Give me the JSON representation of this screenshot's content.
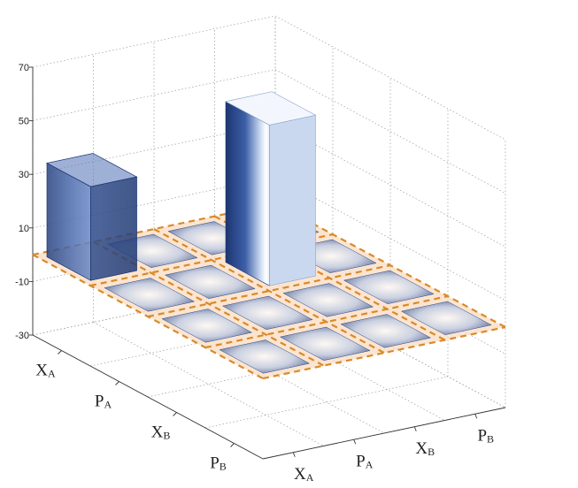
{
  "chart_data": {
    "type": "bar3d",
    "title": "",
    "xlabel": "",
    "ylabel": "",
    "zlim": [
      -30,
      70
    ],
    "z_ticks": [
      "70",
      "50",
      "30",
      "10",
      "-10",
      "-30"
    ],
    "grid": true,
    "row_categories": [
      {
        "main": "X",
        "sub": "A"
      },
      {
        "main": "P",
        "sub": "A"
      },
      {
        "main": "X",
        "sub": "B"
      },
      {
        "main": "P",
        "sub": "B"
      }
    ],
    "col_categories": [
      {
        "main": "X",
        "sub": "A"
      },
      {
        "main": "P",
        "sub": "A"
      },
      {
        "main": "X",
        "sub": "B"
      },
      {
        "main": "P",
        "sub": "B"
      }
    ],
    "values": [
      [
        35,
        0,
        0,
        0
      ],
      [
        0,
        0,
        0,
        0
      ],
      [
        0,
        0,
        0,
        0
      ],
      [
        0,
        0,
        0,
        0
      ]
    ],
    "cylinder_values": [
      [
        0,
        0,
        0,
        0
      ],
      [
        0,
        0,
        60,
        0
      ],
      [
        0,
        0,
        0,
        0
      ],
      [
        0,
        0,
        0,
        0
      ]
    ],
    "colors": {
      "bar_dark": "#1e3a78",
      "bar_light": "#ffffff",
      "plane": "#fbdcc0",
      "plane_border": "#d98a2a"
    }
  }
}
